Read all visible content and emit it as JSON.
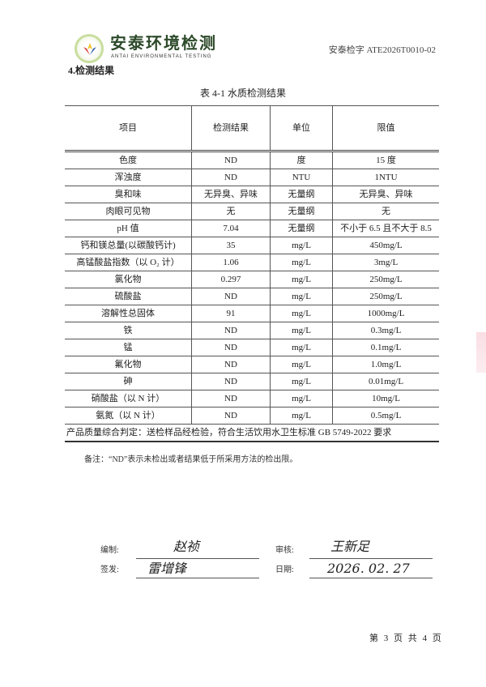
{
  "header": {
    "logo_text": "安泰环境检测",
    "logo_subtitle": "ANTAI ENVIRONMENTAL TESTING",
    "document_number": "安泰检字 ATE2026T0010-02",
    "logo_colors": {
      "ring": "#c9dea0",
      "flame_red": "#d8312a",
      "flame_blue": "#2a58a8",
      "flame_yellow": "#f2c230"
    }
  },
  "section_title": "4.检测结果",
  "table": {
    "caption": "表 4-1 水质检测结果",
    "columns": [
      "项目",
      "检测结果",
      "单位",
      "限值"
    ],
    "rows": [
      [
        "色度",
        "ND",
        "度",
        "15 度"
      ],
      [
        "浑浊度",
        "ND",
        "NTU",
        "1NTU"
      ],
      [
        "臭和味",
        "无异臭、异味",
        "无量纲",
        "无异臭、异味"
      ],
      [
        "肉眼可见物",
        "无",
        "无量纲",
        "无"
      ],
      [
        "pH 值",
        "7.04",
        "无量纲",
        "不小于 6.5 且不大于 8.5"
      ],
      [
        "钙和镁总量(以碳酸钙计)",
        "35",
        "mg/L",
        "450mg/L"
      ],
      [
        "高锰酸盐指数（以 O₂ 计）",
        "1.06",
        "mg/L",
        "3mg/L"
      ],
      [
        "氯化物",
        "0.297",
        "mg/L",
        "250mg/L"
      ],
      [
        "硫酸盐",
        "ND",
        "mg/L",
        "250mg/L"
      ],
      [
        "溶解性总固体",
        "91",
        "mg/L",
        "1000mg/L"
      ],
      [
        "铁",
        "ND",
        "mg/L",
        "0.3mg/L"
      ],
      [
        "锰",
        "ND",
        "mg/L",
        "0.1mg/L"
      ],
      [
        "氟化物",
        "ND",
        "mg/L",
        "1.0mg/L"
      ],
      [
        "砷",
        "ND",
        "mg/L",
        "0.01mg/L"
      ],
      [
        "硝酸盐（以 N 计）",
        "ND",
        "mg/L",
        "10mg/L"
      ],
      [
        "氨氮（以 N 计）",
        "ND",
        "mg/L",
        "0.5mg/L"
      ]
    ],
    "conclusion": "产品质量综合判定：送检样品经检验，符合生活饮用水卫生标准 GB 5749-2022 要求"
  },
  "note": "备注：“ND”表示未检出或者结果低于所采用方法的检出限。",
  "signatures": {
    "compiled_label": "编制:",
    "compiled_sig": "赵祯",
    "reviewed_label": "审核:",
    "reviewed_sig": "王新足",
    "issued_label": "签发:",
    "issued_sig": "雷增锋",
    "date_label": "日期:",
    "date_value": "2026. 02. 27"
  },
  "footer": {
    "page": "第 3 页 共 4 页"
  }
}
